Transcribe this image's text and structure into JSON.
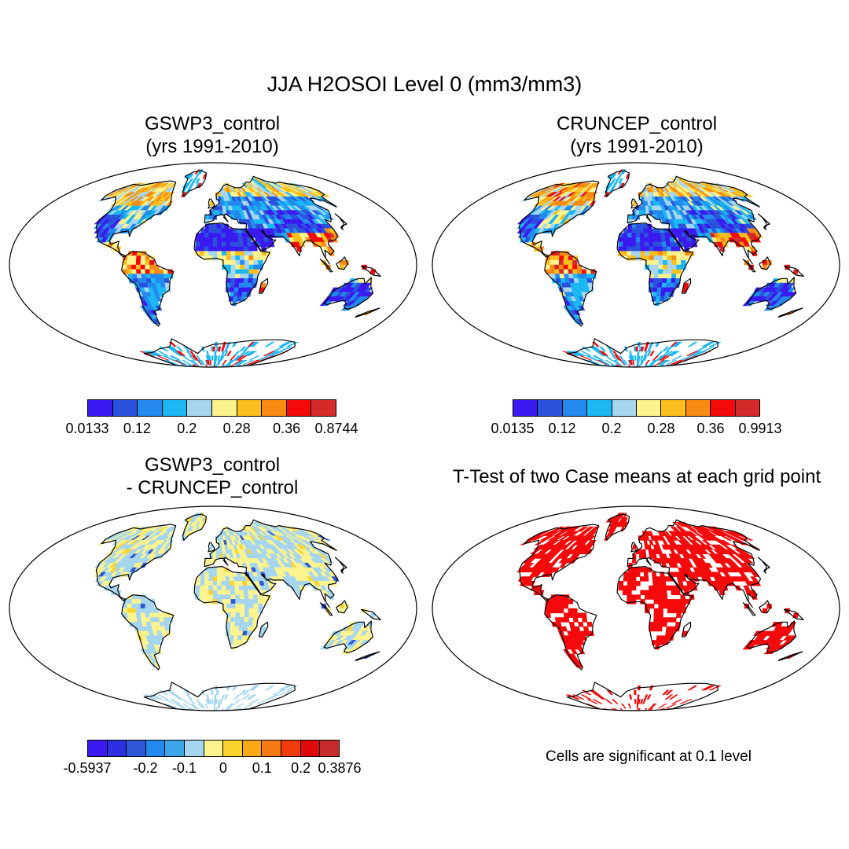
{
  "figure": {
    "title": "JJA H2OSOI Level 0 (mm3/mm3)"
  },
  "panels": {
    "gswp3": {
      "title_line1": "GSWP3_control",
      "title_line2": "(yrs 1991-2010)",
      "colorbar": {
        "colors": [
          "#3b1af2",
          "#2a52dd",
          "#2389ee",
          "#1bb8f3",
          "#a6d6ef",
          "#fbf38e",
          "#fbc01e",
          "#f88b12",
          "#f40a0a",
          "#d42a2a"
        ],
        "labels": [
          "0.0133",
          "0.12",
          "0.2",
          "0.28",
          "0.36",
          "0.8744"
        ]
      }
    },
    "cruncep": {
      "title_line1": "CRUNCEP_control",
      "title_line2": "(yrs 1991-2010)",
      "colorbar": {
        "colors": [
          "#3b1af2",
          "#2a52dd",
          "#2389ee",
          "#1bb8f3",
          "#a6d6ef",
          "#fbf38e",
          "#fbc01e",
          "#f88b12",
          "#f40a0a",
          "#d42a2a"
        ],
        "labels": [
          "0.0135",
          "0.12",
          "0.2",
          "0.28",
          "0.36",
          "0.9913"
        ]
      }
    },
    "difference": {
      "title_line1": "GSWP3_control",
      "title_line2": "- CRUNCEP_control",
      "colorbar": {
        "colors": [
          "#3b1af2",
          "#2d2fe0",
          "#2f58d8",
          "#2389ee",
          "#3ba7ea",
          "#a6d6ef",
          "#fbf38e",
          "#fbd430",
          "#f9aa12",
          "#f77a14",
          "#f03c0c",
          "#e00a0a",
          "#c82b2b"
        ],
        "labels": [
          "-0.5937",
          "-0.2",
          "-0.1",
          "0",
          "0.1",
          "0.2",
          "0.3876"
        ]
      }
    },
    "ttest": {
      "title": "T-Test of two Case means at each grid point",
      "note": "Cells are significant at 0.1 level",
      "significant_color": "#f40a0a"
    }
  }
}
